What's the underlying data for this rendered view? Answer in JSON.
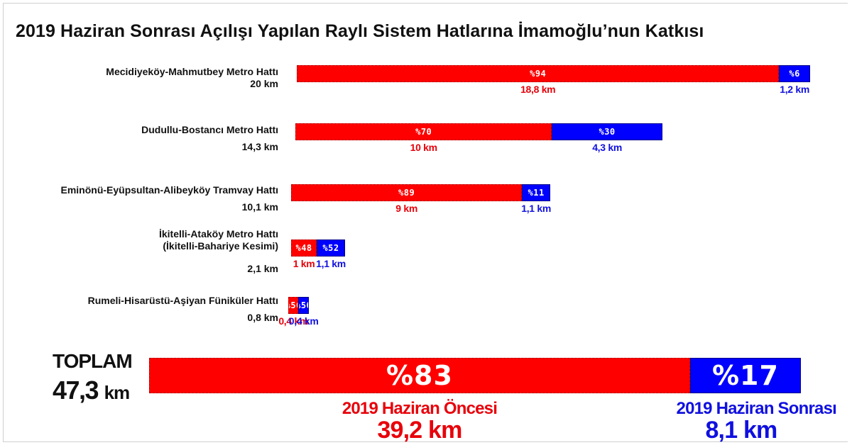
{
  "chart_data": {
    "type": "bar",
    "stacked": true,
    "orientation": "horizontal",
    "title": "2019 Haziran Sonrası Açılışı Yapılan Raylı Sistem Hatlarına İmamoğlu’nun Katkısı",
    "colors": {
      "before": "#ff0000",
      "after": "#0000ff"
    },
    "lines": [
      {
        "name": "Mecidiyeköy-Mahmutbey Metro Hattı",
        "length": "20 km",
        "total_km": 20,
        "before_pct": "%94",
        "before_km": "18,8 km",
        "before_value": 18.8,
        "after_pct": "%6",
        "after_km": "1,2 km",
        "after_value": 1.2
      },
      {
        "name": "Dudullu-Bostancı Metro Hattı",
        "length": "14,3 km",
        "total_km": 14.3,
        "before_pct": "%70",
        "before_km": "10 km",
        "before_value": 10,
        "after_pct": "%30",
        "after_km": "4,3 km",
        "after_value": 4.3
      },
      {
        "name": "Eminönü-Eyüpsultan-Alibeyköy Tramvay Hattı",
        "length": "10,1 km",
        "total_km": 10.1,
        "before_pct": "%89",
        "before_km": "9 km",
        "before_value": 9,
        "after_pct": "%11",
        "after_km": "1,1 km",
        "after_value": 1.1
      },
      {
        "name": "İkitelli-Ataköy Metro Hattı",
        "name2": "(İkitelli-Bahariye Kesimi)",
        "length": "2,1 km",
        "total_km": 2.1,
        "before_pct": "%48",
        "before_km": "1 km",
        "before_value": 1,
        "after_pct": "%52",
        "after_km": "1,1 km",
        "after_value": 1.1
      },
      {
        "name": "Rumeli-Hisarüstü-Aşiyan Füniküler Hattı",
        "length": "0,8 km",
        "total_km": 0.8,
        "before_pct": "%50",
        "before_km": "0,4 km",
        "before_value": 0.4,
        "after_pct": "%50",
        "after_km": "0,4 km",
        "after_value": 0.4
      }
    ],
    "total": {
      "label": "TOPLAM",
      "length_value": "47,3",
      "length_unit": "km",
      "before_pct": "%83",
      "after_pct": "%17",
      "before_share": 0.83,
      "after_share": 0.17,
      "before_title": "2019 Haziran Öncesi",
      "before_km": "39,2 km",
      "after_title": "2019 Haziran Sonrası",
      "after_km": "8,1 km"
    }
  }
}
